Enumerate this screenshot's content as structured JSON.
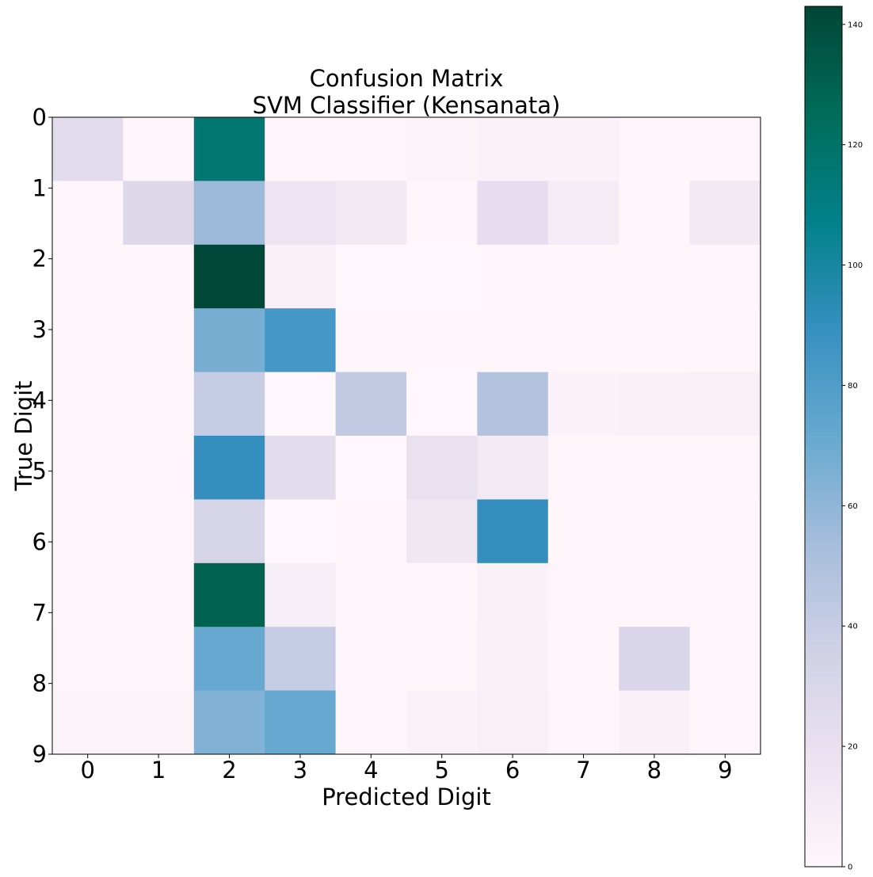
{
  "chart_data": {
    "type": "heatmap",
    "title": [
      "Confusion Matrix",
      "SVM Classifier (Kensanata)"
    ],
    "xlabel": "Predicted Digit",
    "ylabel": "True Digit",
    "x_categories": [
      "0",
      "1",
      "2",
      "3",
      "4",
      "5",
      "6",
      "7",
      "8",
      "9"
    ],
    "y_categories": [
      "0",
      "1",
      "2",
      "3",
      "4",
      "5",
      "6",
      "7",
      "8",
      "9"
    ],
    "values": [
      [
        24,
        1,
        116,
        2,
        2,
        3,
        4,
        4,
        2,
        1
      ],
      [
        1,
        28,
        56,
        17,
        13,
        1,
        22,
        10,
        1,
        12
      ],
      [
        1,
        1,
        142,
        6,
        0,
        0,
        1,
        1,
        2,
        1
      ],
      [
        1,
        1,
        67,
        84,
        1,
        1,
        1,
        1,
        1,
        2
      ],
      [
        1,
        1,
        40,
        0,
        42,
        0,
        48,
        4,
        5,
        7
      ],
      [
        1,
        1,
        90,
        24,
        0,
        19,
        11,
        1,
        1,
        1
      ],
      [
        1,
        2,
        32,
        0,
        1,
        14,
        90,
        1,
        2,
        2
      ],
      [
        1,
        2,
        130,
        8,
        1,
        1,
        5,
        2,
        2,
        2
      ],
      [
        2,
        2,
        72,
        40,
        1,
        2,
        6,
        1,
        30,
        2
      ],
      [
        3,
        3,
        64,
        72,
        1,
        4,
        7,
        2,
        5,
        2
      ]
    ],
    "colormap": "PuBuGn",
    "colorbar": {
      "range": [
        0,
        143
      ],
      "ticks": [
        "0",
        "20",
        "40",
        "60",
        "80",
        "100",
        "120",
        "140"
      ]
    },
    "grid": false,
    "legend": "colorbar-right"
  }
}
